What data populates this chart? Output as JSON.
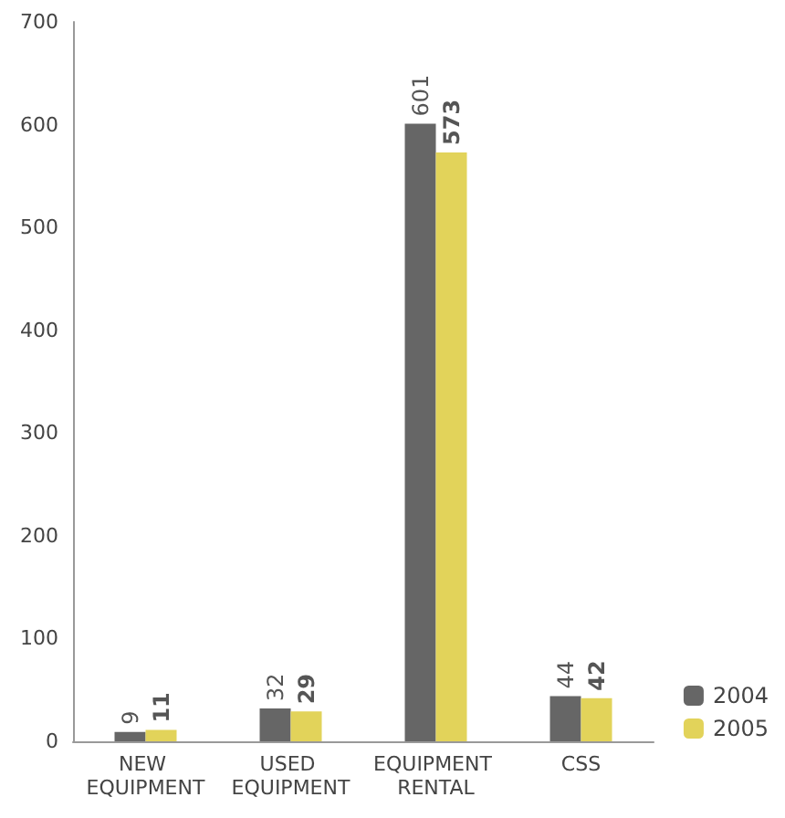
{
  "chart_data": {
    "type": "bar",
    "categories": [
      "NEW EQUIPMENT",
      "USED EQUIPMENT",
      "EQUIPMENT RENTAL",
      "CSS"
    ],
    "series": [
      {
        "name": "2004",
        "color": "#666666",
        "values": [
          9,
          32,
          601,
          44
        ]
      },
      {
        "name": "2005",
        "color": "#e2d35a",
        "values": [
          11,
          29,
          573,
          42
        ]
      }
    ],
    "ylim": [
      0,
      700
    ],
    "yticks": [
      0,
      100,
      200,
      300,
      400,
      500,
      600,
      700
    ],
    "grid": false,
    "legend": "bottom right",
    "data_labels": true
  }
}
